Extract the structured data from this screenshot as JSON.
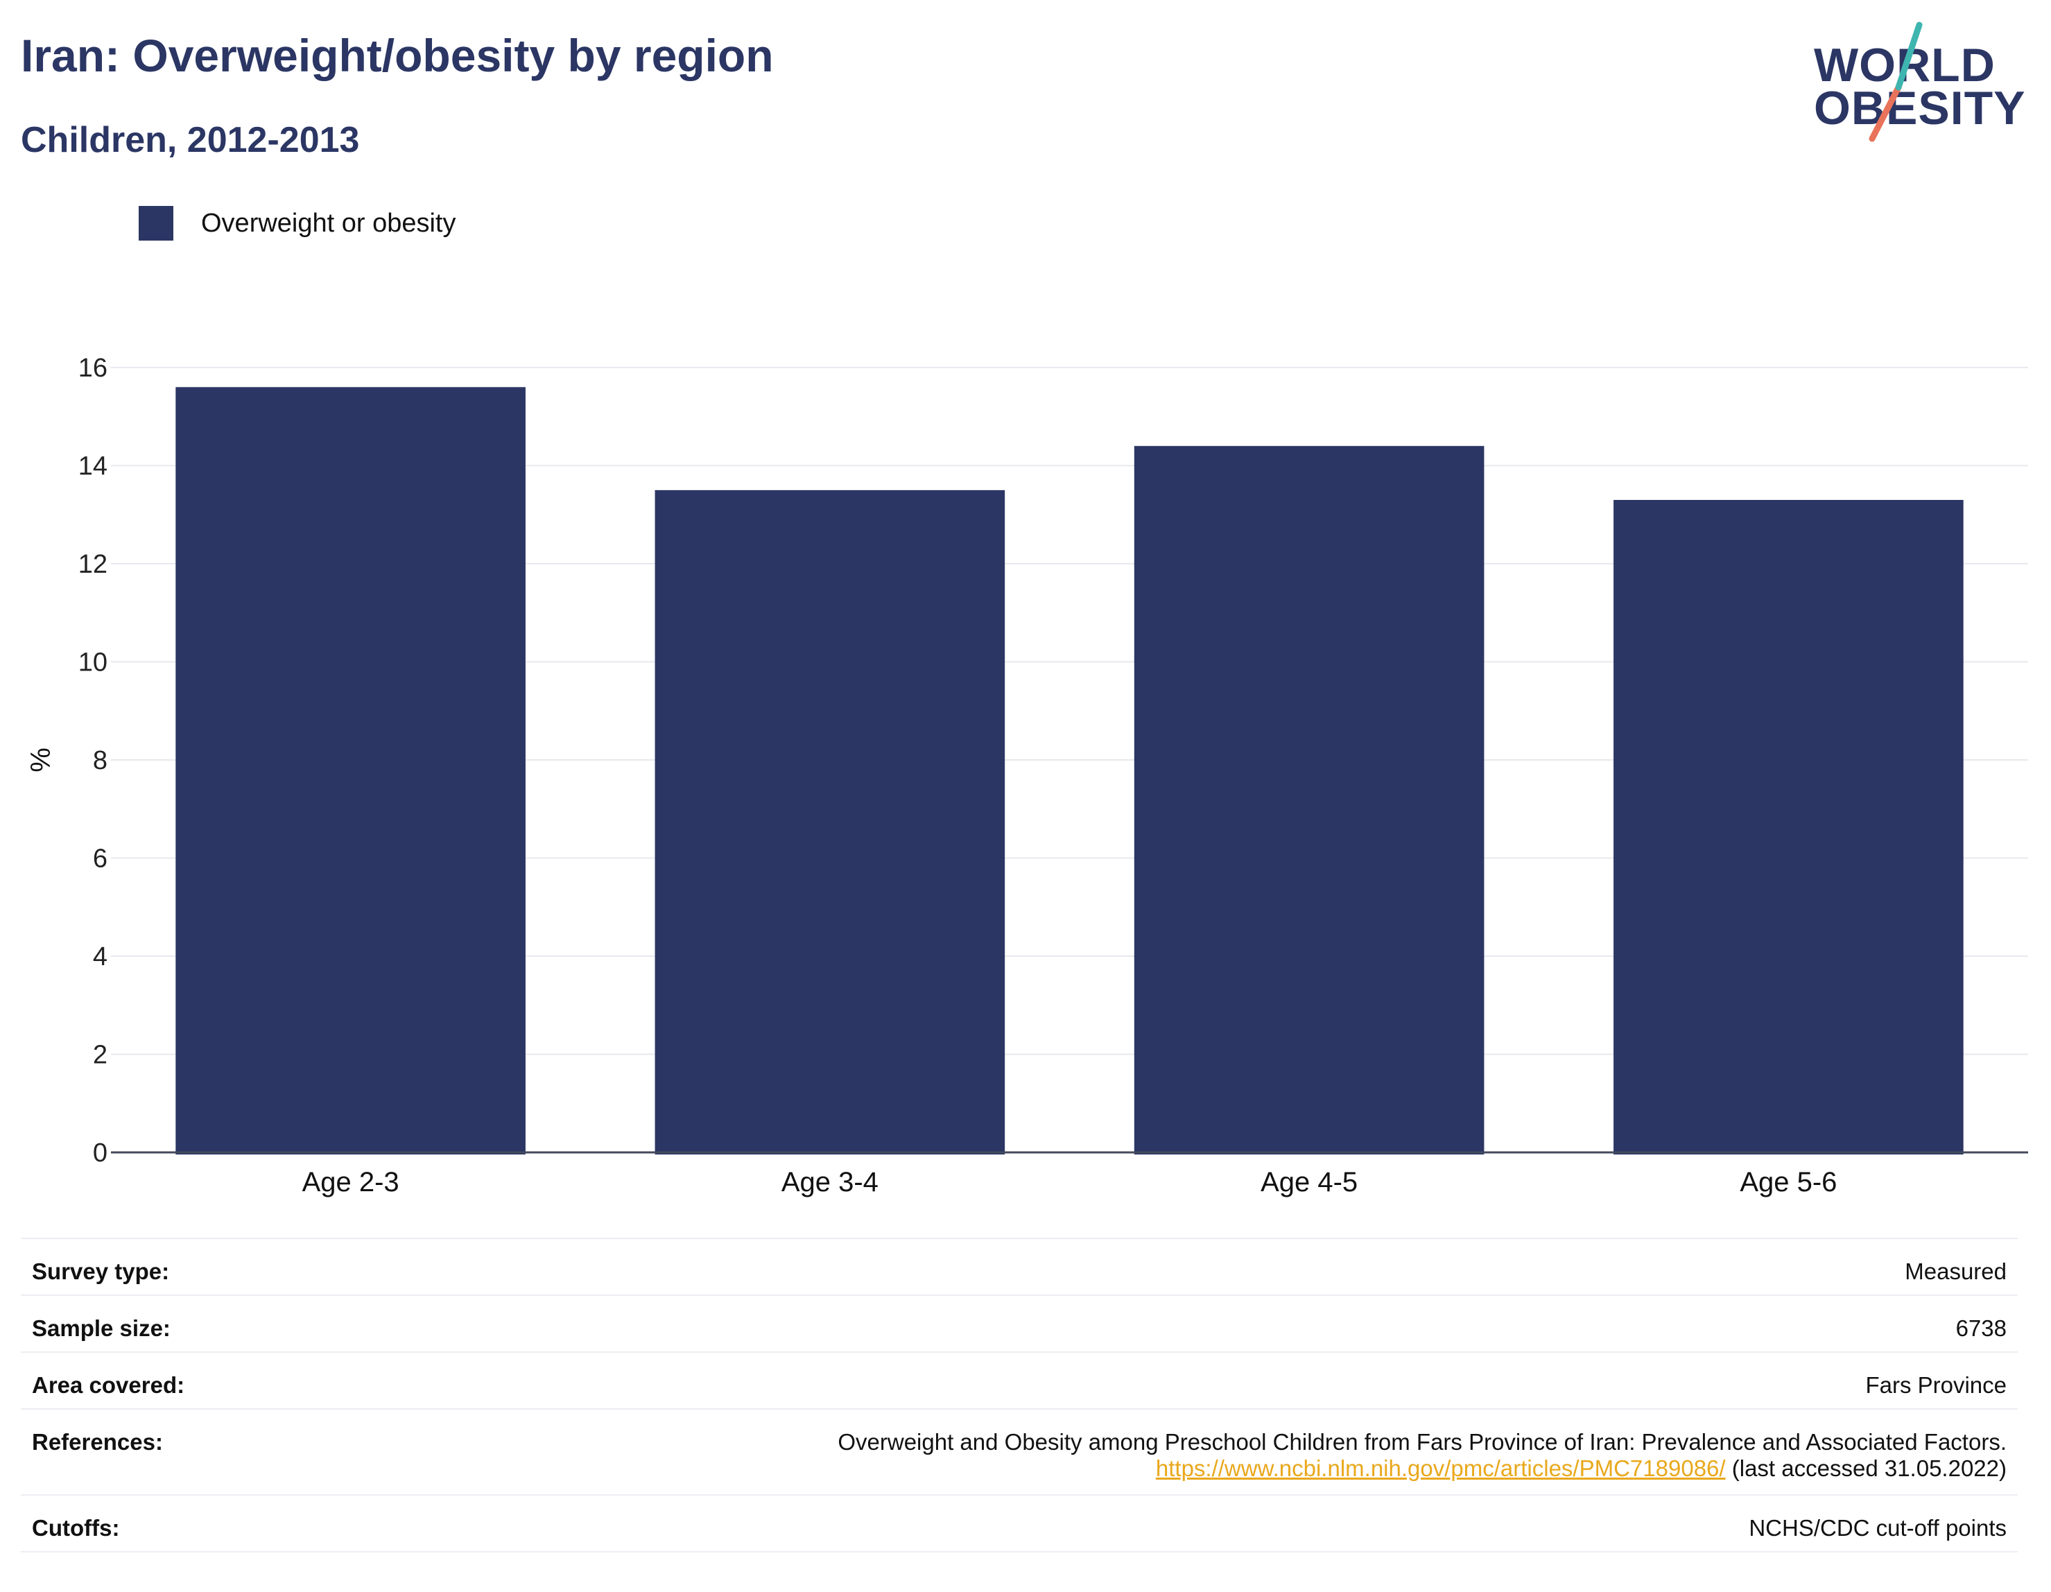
{
  "title": "Iran: Overweight/obesity by region",
  "subtitle": "Children, 2012-2013",
  "logo": {
    "line1": "WORLD",
    "line2": "OBESITY"
  },
  "legend": {
    "label": "Overweight or obesity"
  },
  "colors": {
    "bar": "#2b3664",
    "title": "#2b3664",
    "link": "#e9a81c",
    "logo_teal": "#3fb5b0",
    "logo_coral": "#e8735a"
  },
  "chart_data": {
    "type": "bar",
    "title": "Iran: Overweight/obesity by region",
    "subtitle": "Children, 2012-2013",
    "categories": [
      "Age 2-3",
      "Age 3-4",
      "Age 4-5",
      "Age 5-6"
    ],
    "series": [
      {
        "name": "Overweight or obesity",
        "values": [
          15.6,
          13.5,
          14.4,
          13.3
        ]
      }
    ],
    "ylabel": "%",
    "xlabel": "",
    "ylim": [
      0,
      16
    ],
    "yticks": [
      0,
      2,
      4,
      6,
      8,
      10,
      12,
      14,
      16
    ],
    "grid": true,
    "legend_position": "top-left"
  },
  "info": [
    {
      "key": "Survey type:",
      "value": "Measured"
    },
    {
      "key": "Sample size:",
      "value": "6738"
    },
    {
      "key": "Area covered:",
      "value": "Fars Province"
    },
    {
      "key": "References:",
      "value": "Overweight and Obesity among Preschool Children from Fars Province of Iran: Prevalence and Associated Factors.",
      "link": "https://www.ncbi.nlm.nih.gov/pmc/articles/PMC7189086/",
      "suffix": " (last accessed 31.05.2022)"
    },
    {
      "key": "Cutoffs:",
      "value": "NCHS/CDC cut-off points"
    }
  ]
}
